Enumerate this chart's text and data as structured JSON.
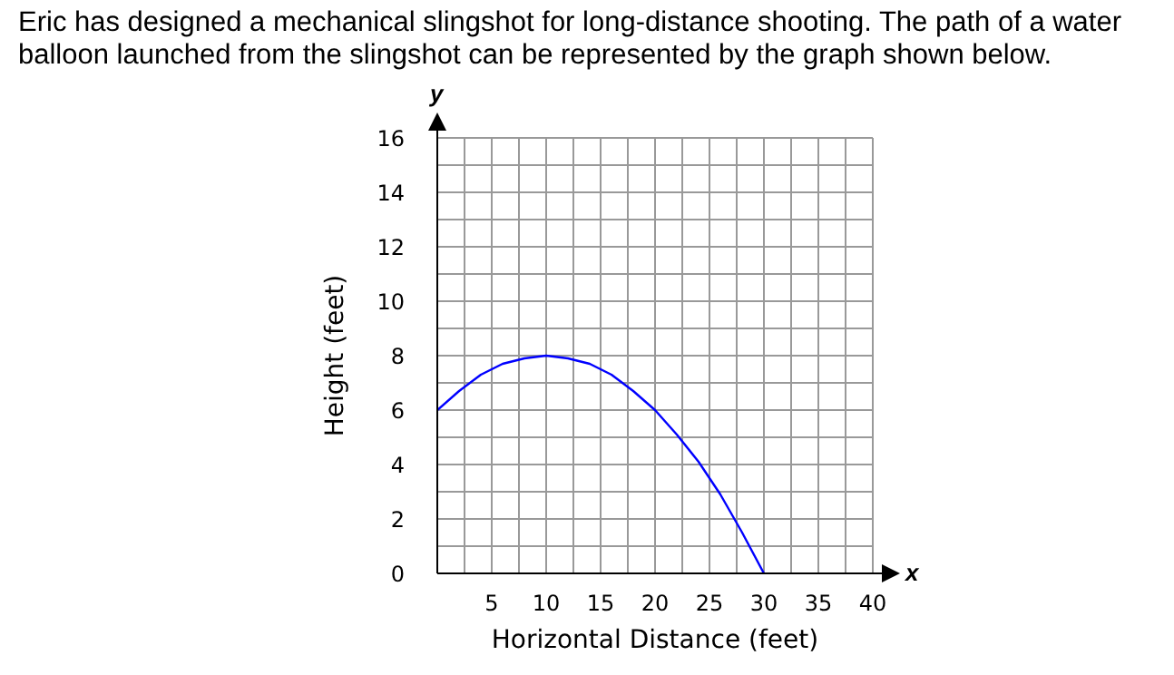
{
  "chart_data": {
    "type": "line",
    "title": "Eric has designed a mechanical slingshot for long-distance shooting. The path of a water balloon launched from the slingshot can be represented by the graph shown below.",
    "xlabel": "Horizontal Distance (feet)",
    "ylabel": "Height (feet)",
    "annotations": [
      "x",
      "y"
    ],
    "x": [
      0,
      2,
      4,
      6,
      8,
      10,
      12,
      14,
      16,
      18,
      20,
      22,
      24,
      26,
      28,
      30
    ],
    "series": [
      {
        "color": "#0000ff",
        "values": [
          6,
          6.7,
          7.3,
          7.7,
          7.9,
          8,
          7.9,
          7.7,
          7.3,
          6.7,
          6,
          5.1,
          4.1,
          2.9,
          1.5,
          0
        ]
      }
    ],
    "xlim": [
      0,
      40
    ],
    "ylim": [
      0,
      16
    ],
    "xticks": [
      {
        "value": 0,
        "label": null
      },
      {
        "value": 2.5,
        "label": null
      },
      5,
      {
        "value": 7.5,
        "label": null
      },
      10,
      {
        "value": 12.5,
        "label": null
      },
      15,
      {
        "value": 17.5,
        "label": null
      },
      20,
      {
        "value": 22.5,
        "label": null
      },
      25,
      {
        "value": 27.5,
        "label": null
      },
      30,
      {
        "value": 32.5,
        "label": null
      },
      35,
      {
        "value": 37.5,
        "label": null
      },
      40
    ],
    "yticks": [
      0,
      {
        "value": 1,
        "label": null
      },
      2,
      {
        "value": 3,
        "label": null
      },
      4,
      {
        "value": 5,
        "label": null
      },
      6,
      {
        "value": 7,
        "label": null
      },
      8,
      {
        "value": 9,
        "label": null
      },
      10,
      {
        "value": 11,
        "label": null
      },
      12,
      {
        "value": 13,
        "label": null
      },
      14,
      {
        "value": 15,
        "label": null
      },
      16
    ],
    "grid": true,
    "marker": "none",
    "line_style": "solid"
  }
}
